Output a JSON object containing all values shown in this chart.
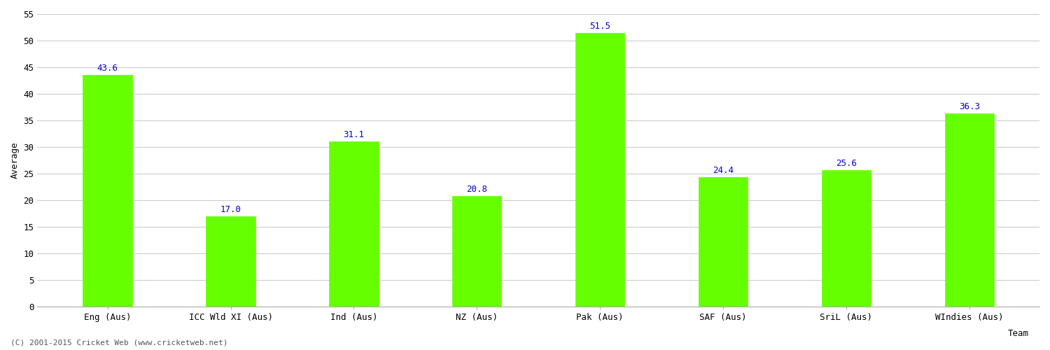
{
  "categories": [
    "Eng (Aus)",
    "ICC Wld XI (Aus)",
    "Ind (Aus)",
    "NZ (Aus)",
    "Pak (Aus)",
    "SAF (Aus)",
    "SriL (Aus)",
    "WIndies (Aus)"
  ],
  "values": [
    43.6,
    17.0,
    31.1,
    20.8,
    51.5,
    24.4,
    25.6,
    36.3
  ],
  "bar_color": "#66FF00",
  "bar_edge_color": "#66FF00",
  "label_color": "#0000CC",
  "xlabel": "Team",
  "ylabel": "Average",
  "ylim": [
    0,
    55
  ],
  "yticks": [
    0,
    5,
    10,
    15,
    20,
    25,
    30,
    35,
    40,
    45,
    50,
    55
  ],
  "grid_color": "#cccccc",
  "background_color": "#ffffff",
  "label_fontsize": 9,
  "axis_fontsize": 9,
  "tick_fontsize": 9,
  "footer": "(C) 2001-2015 Cricket Web (www.cricketweb.net)",
  "bar_width": 0.4
}
